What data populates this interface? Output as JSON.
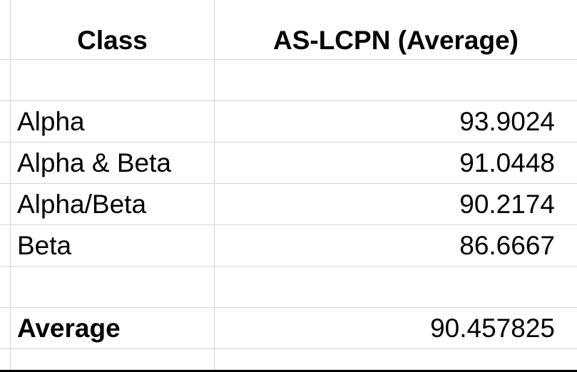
{
  "table": {
    "header": {
      "class_label": "Class",
      "metric_label": "AS-LCPN (Average)"
    },
    "rows": [
      {
        "class": "Alpha",
        "value": "93.9024"
      },
      {
        "class": "Alpha & Beta",
        "value": "91.0448"
      },
      {
        "class": "Alpha/Beta",
        "value": "90.2174"
      },
      {
        "class": "Beta",
        "value": "86.6667"
      }
    ],
    "summary": {
      "label": "Average",
      "value": "90.457825"
    }
  },
  "colors": {
    "gridline": "#d4d4d4",
    "text": "#000000",
    "background": "#ffffff"
  }
}
